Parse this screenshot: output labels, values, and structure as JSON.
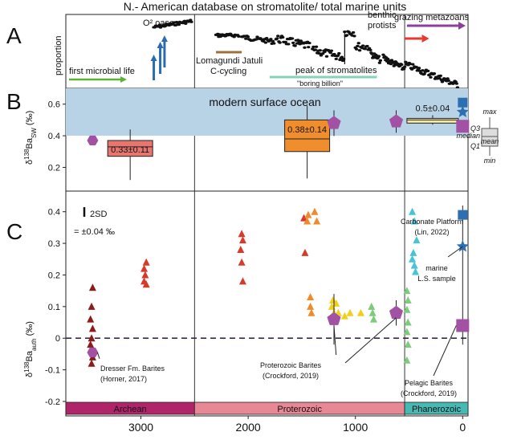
{
  "colors": {
    "archean": "#b0246a",
    "proterozoic": "#e88896",
    "phanerozoic": "#47b9b3",
    "ocean_band": "#b9d3e6",
    "green": "#5bb336",
    "blue_arrow": "#2b6cb0",
    "brown": "#a0703c",
    "mint": "#86d3b8",
    "red_arrow": "#e53a32",
    "purple": "#8b3f9c",
    "dark_red": "#8c1b1b",
    "red_tri": "#d83a2a",
    "orange_tri": "#f08a2a",
    "yellow_tri": "#f2cf1d",
    "green_tri": "#7ccc7a",
    "cyan_tri": "#45c4d8",
    "violet": "#a251a4",
    "steel_blue": "#2c6fb3",
    "box_red": "#e8766f",
    "box_orange": "#f08d2c",
    "box_yellow": "#f6e9a8"
  },
  "chart_data": [
    {
      "panel": "A",
      "type": "scatter",
      "title": "N.- American database on stromatolite/ total marine units",
      "ylabel": "proportion",
      "xlim": [
        3700,
        -50
      ],
      "annotations": [
        {
          "text": "first microbial life",
          "color": "green"
        },
        {
          "text": "O² oases",
          "color": "blue_arrow"
        },
        {
          "text": "Lomagundi Jatuli C-cycling",
          "color": "brown"
        },
        {
          "text": "\"boring billion\"",
          "color": "mint"
        },
        {
          "text": "peak of stromatolites",
          "color": "black"
        },
        {
          "text": "benthic protists",
          "color": "red_arrow"
        },
        {
          "text": "grazing metazoans",
          "color": "purple"
        }
      ]
    },
    {
      "panel": "B",
      "type": "box",
      "ylabel": "δ138Ba_SW (‰)",
      "xlim": [
        3700,
        -50
      ],
      "ylim": [
        0.05,
        0.7
      ],
      "yticks": [
        0.2,
        0.4,
        0.6
      ],
      "band": {
        "label": "modern surface ocean",
        "y": [
          0.4,
          0.7
        ]
      },
      "boxes": [
        {
          "x": 3100,
          "q1": 0.27,
          "median": 0.33,
          "q3": 0.37,
          "min": 0.12,
          "max": 0.44,
          "label": "0.33±0.11",
          "color": "box_red"
        },
        {
          "x": 1450,
          "q1": 0.3,
          "median": 0.38,
          "q3": 0.5,
          "min": 0.13,
          "max": 0.59,
          "label": "0.38±0.14",
          "color": "box_orange"
        },
        {
          "x": 280,
          "q1": 0.48,
          "median": 0.5,
          "q3": 0.51,
          "min": 0.47,
          "max": 0.53,
          "label": "0.5±0.04",
          "color": "box_yellow"
        }
      ],
      "points": [
        {
          "x": 3450,
          "y": 0.37,
          "marker": "hexagon"
        },
        {
          "x": 1200,
          "y": 0.48,
          "marker": "pentagon"
        },
        {
          "x": 620,
          "y": 0.49,
          "marker": "pentagon"
        },
        {
          "x": 0,
          "y": 0.61,
          "marker": "square-blue"
        },
        {
          "x": 0,
          "y": 0.55,
          "marker": "star"
        },
        {
          "x": 0,
          "y": 0.46,
          "marker": "square-violet"
        }
      ],
      "key": {
        "max": "max",
        "q3": "Q3",
        "median": "median",
        "mean": "mean",
        "q1": "Q1",
        "min": "min"
      }
    },
    {
      "panel": "C",
      "type": "scatter",
      "ylabel": "δ138Ba_auth (‰)",
      "xlim": [
        3700,
        -50
      ],
      "ylim": [
        -0.2,
        0.45
      ],
      "yticks": [
        -0.2,
        -0.1,
        0,
        0.1,
        0.2,
        0.3,
        0.4
      ],
      "xticks": [
        3000,
        2000,
        1000,
        0
      ],
      "errorbar_label": "2SD",
      "errorbar_value": "= ±0.04 ‰",
      "series": [
        {
          "color": "dark_red",
          "points": [
            [
              3450,
              0.16
            ],
            [
              3460,
              0.1
            ],
            [
              3470,
              0.06
            ],
            [
              3450,
              0.03
            ],
            [
              3460,
              0.0
            ],
            [
              3470,
              -0.02
            ],
            [
              3450,
              -0.06
            ],
            [
              3460,
              -0.08
            ]
          ]
        },
        {
          "color": "red_tri",
          "points": [
            [
              2950,
              0.24
            ],
            [
              2970,
              0.22
            ],
            [
              2960,
              0.2
            ],
            [
              2970,
              0.18
            ],
            [
              2950,
              0.17
            ],
            [
              2060,
              0.33
            ],
            [
              2050,
              0.31
            ],
            [
              2070,
              0.28
            ],
            [
              2060,
              0.24
            ],
            [
              2050,
              0.18
            ],
            [
              1480,
              0.38
            ],
            [
              1470,
              0.27
            ]
          ]
        },
        {
          "color": "orange_tri",
          "points": [
            [
              1380,
              0.4
            ],
            [
              1440,
              0.39
            ],
            [
              1360,
              0.37
            ],
            [
              1450,
              0.37
            ],
            [
              1420,
              0.13
            ],
            [
              1420,
              0.1
            ],
            [
              1410,
              0.08
            ]
          ]
        },
        {
          "color": "yellow_tri",
          "points": [
            [
              1210,
              0.12
            ],
            [
              1180,
              0.11
            ],
            [
              1220,
              0.1
            ],
            [
              1160,
              0.08
            ],
            [
              1200,
              0.08
            ],
            [
              1100,
              0.07
            ],
            [
              1050,
              0.08
            ],
            [
              950,
              0.08
            ]
          ]
        },
        {
          "color": "green_tri",
          "points": [
            [
              850,
              0.1
            ],
            [
              840,
              0.08
            ],
            [
              830,
              0.06
            ],
            [
              520,
              0.15
            ],
            [
              510,
              0.12
            ],
            [
              520,
              0.09
            ],
            [
              510,
              0.05
            ],
            [
              520,
              0.02
            ],
            [
              510,
              -0.02
            ],
            [
              520,
              -0.07
            ]
          ]
        },
        {
          "color": "cyan_tri",
          "points": [
            [
              470,
              0.4
            ],
            [
              450,
              0.37
            ],
            [
              430,
              0.31
            ],
            [
              460,
              0.27
            ],
            [
              470,
              0.25
            ],
            [
              450,
              0.23
            ],
            [
              440,
              0.21
            ]
          ]
        }
      ],
      "markers": [
        {
          "x": 3450,
          "y": -0.045,
          "marker": "hexagon",
          "label": "Dresser Fm. Barites\n(Horner, 2017)"
        },
        {
          "x": 1200,
          "y": 0.06,
          "marker": "pentagon",
          "label": "Proterozoic Barites\n(Crockford, 2019)"
        },
        {
          "x": 620,
          "y": 0.08,
          "marker": "pentagon"
        },
        {
          "x": 0,
          "y": 0.39,
          "marker": "square-blue",
          "label": "Carbonate Platform\n(Lin, 2022)"
        },
        {
          "x": 0,
          "y": 0.29,
          "marker": "star",
          "label": "marine\nL.S. sample"
        },
        {
          "x": 0,
          "y": 0.04,
          "marker": "square-violet",
          "label": "Pelagic Barites\n(Crockford, 2019)"
        }
      ],
      "eons": [
        {
          "name": "Archean",
          "from": 3700,
          "to": 2500,
          "color": "archean"
        },
        {
          "name": "Proterozoic",
          "from": 2500,
          "to": 541,
          "color": "proterozoic"
        },
        {
          "name": "Phanerozoic",
          "from": 541,
          "to": -50,
          "color": "phanerozoic"
        }
      ]
    }
  ],
  "panel_labels": [
    "A",
    "B",
    "C"
  ]
}
